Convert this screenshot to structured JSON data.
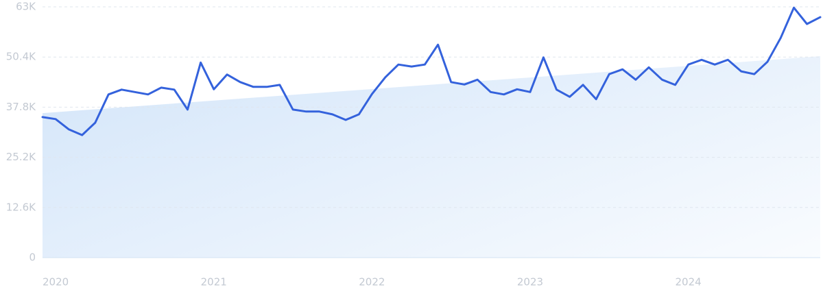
{
  "chart_data": {
    "type": "line",
    "x": [
      2020,
      2020.083,
      2020.167,
      2020.25,
      2020.333,
      2020.417,
      2020.5,
      2020.583,
      2020.667,
      2020.75,
      2020.833,
      2020.917,
      2021,
      2021.083,
      2021.167,
      2021.25,
      2021.333,
      2021.417,
      2021.5,
      2021.583,
      2021.667,
      2021.75,
      2021.833,
      2021.917,
      2022,
      2022.083,
      2022.167,
      2022.25,
      2022.333,
      2022.417,
      2022.5,
      2022.583,
      2022.667,
      2022.75,
      2022.833,
      2022.917,
      2023,
      2023.083,
      2023.167,
      2023.25,
      2023.333,
      2023.417,
      2023.5,
      2023.583,
      2023.667,
      2023.75,
      2023.833,
      2023.917,
      2024,
      2024.083,
      2024.167,
      2024.25,
      2024.333,
      2024.417,
      2024.5,
      2024.583,
      2024.667,
      2024.75,
      2024.833,
      2024.917
    ],
    "values": [
      35300,
      34800,
      32200,
      30800,
      33900,
      41000,
      42200,
      41600,
      41000,
      42700,
      42200,
      37200,
      49000,
      42300,
      46000,
      44100,
      42900,
      42900,
      43400,
      37200,
      36700,
      36700,
      36000,
      34600,
      36000,
      41100,
      45300,
      48500,
      48000,
      48500,
      53500,
      44100,
      43500,
      44700,
      41600,
      41000,
      42300,
      41600,
      50300,
      42200,
      40400,
      43400,
      39800,
      46100,
      47300,
      44700,
      47800,
      44700,
      43400,
      48500,
      49700,
      48500,
      49700,
      46800,
      46100,
      49200,
      55200,
      62800,
      58700,
      60400
    ],
    "color": "#3462dc",
    "trend": [
      36300,
      50600
    ],
    "trend_color": "#d8e8fa",
    "xlim": [
      2020,
      2024.917
    ],
    "xticks": [
      2020,
      2021,
      2022,
      2023,
      2024
    ],
    "ylim": [
      0,
      63000
    ],
    "yticks": [
      0,
      {
        "value": 12600,
        "label": "12.6K"
      },
      {
        "value": 25200,
        "label": "25.2K"
      },
      {
        "value": 37800,
        "label": "37.8K"
      },
      {
        "value": 50400,
        "label": "50.4K"
      },
      {
        "value": 63000,
        "label": "63K"
      }
    ],
    "grid": true
  }
}
